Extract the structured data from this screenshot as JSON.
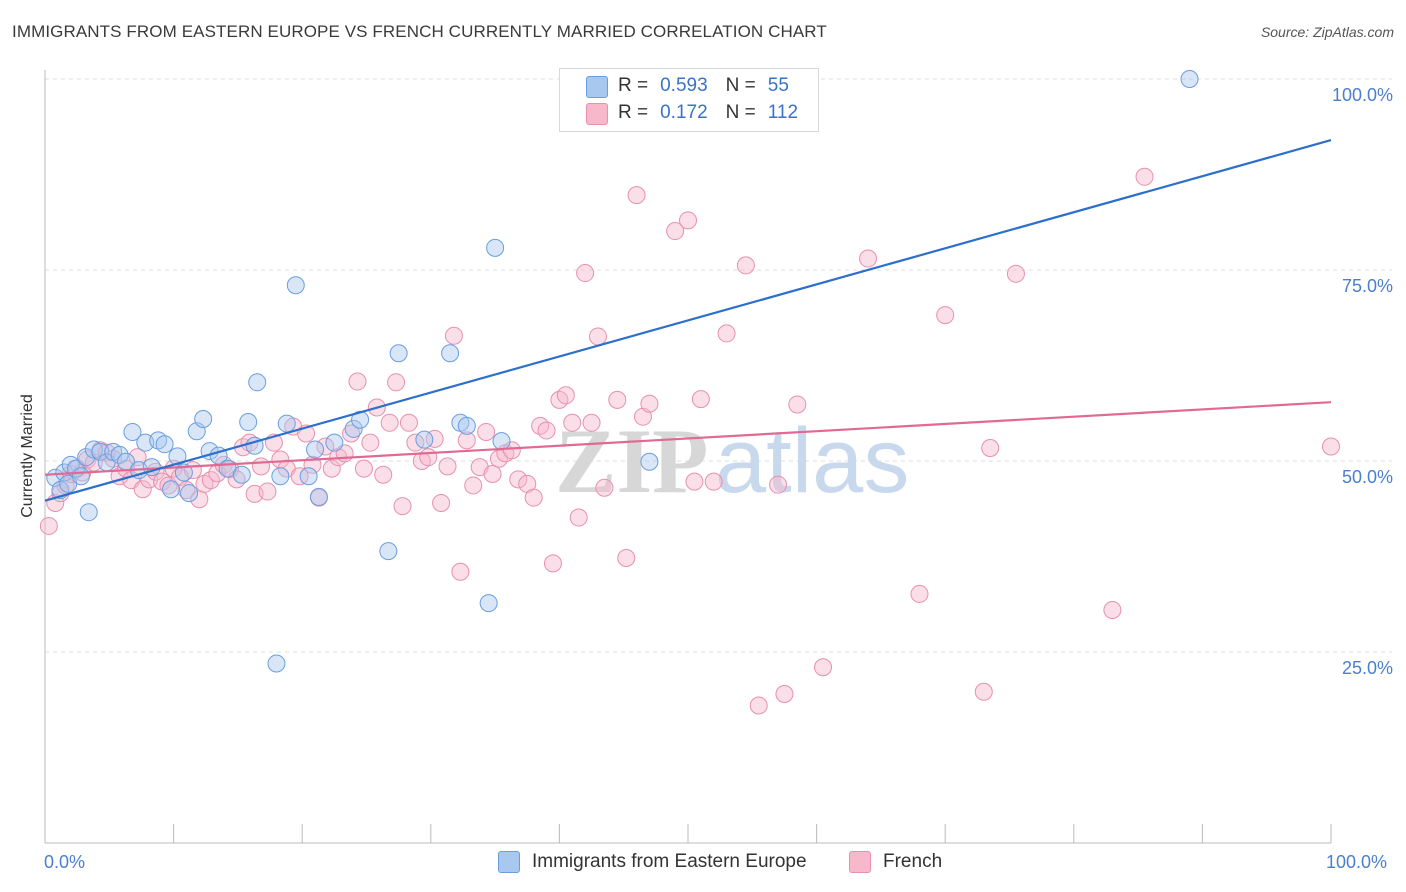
{
  "title": "IMMIGRANTS FROM EASTERN EUROPE VS FRENCH CURRENTLY MARRIED CORRELATION CHART",
  "source": "Source: ZipAtlas.com",
  "watermark": {
    "zip": "ZIP",
    "atlas": "atlas"
  },
  "legend_top": {
    "rows": [
      {
        "r_label": "R =",
        "r_value": "0.593",
        "n_label": "N =",
        "n_value": "55"
      },
      {
        "r_label": "R =",
        "r_value": "0.172",
        "n_label": "N =",
        "n_value": "112"
      }
    ]
  },
  "colors": {
    "blue_fill": "#a9c8f0",
    "blue_stroke": "#6a9ee0",
    "blue_line": "#2c6fcc",
    "pink_fill": "#f7b8cc",
    "pink_stroke": "#e890ae",
    "pink_line": "#e06a94",
    "axis_text": "#4a7fd0",
    "grid": "#dddddd"
  },
  "chart_data": {
    "type": "scatter",
    "title": "IMMIGRANTS FROM EASTERN EUROPE VS FRENCH CURRENTLY MARRIED CORRELATION CHART",
    "xlabel": "",
    "ylabel": "Currently Married",
    "xlim": [
      0,
      100
    ],
    "ylim": [
      0,
      105
    ],
    "x_tick_labels": [
      "0.0%",
      "100.0%"
    ],
    "y_ticks": [
      25,
      50,
      75,
      100
    ],
    "y_tick_labels": [
      "25.0%",
      "50.0%",
      "75.0%",
      "100.0%"
    ],
    "grid": true,
    "legend_position": "bottom",
    "series": [
      {
        "name": "Immigrants from Eastern Europe",
        "color": "#a9c8f0",
        "r": 0.593,
        "n": 55,
        "trend": {
          "x": [
            0,
            100
          ],
          "y": [
            44.8,
            92.0
          ]
        },
        "points": [
          [
            0.8,
            47.8
          ],
          [
            1.2,
            46.2
          ],
          [
            1.5,
            48.5
          ],
          [
            1.8,
            47.0
          ],
          [
            2.0,
            49.5
          ],
          [
            2.4,
            49.0
          ],
          [
            2.8,
            48.0
          ],
          [
            3.2,
            50.5
          ],
          [
            3.4,
            43.3
          ],
          [
            3.8,
            51.5
          ],
          [
            4.3,
            51.2
          ],
          [
            4.8,
            49.8
          ],
          [
            5.3,
            51.2
          ],
          [
            5.8,
            50.8
          ],
          [
            6.3,
            49.9
          ],
          [
            6.8,
            53.8
          ],
          [
            7.3,
            48.8
          ],
          [
            7.8,
            52.4
          ],
          [
            8.3,
            49.2
          ],
          [
            8.8,
            52.7
          ],
          [
            9.3,
            52.2
          ],
          [
            9.8,
            46.3
          ],
          [
            10.3,
            50.6
          ],
          [
            10.8,
            48.5
          ],
          [
            11.2,
            45.8
          ],
          [
            11.8,
            53.9
          ],
          [
            12.3,
            55.5
          ],
          [
            12.8,
            51.3
          ],
          [
            13.5,
            50.7
          ],
          [
            14.2,
            49.0
          ],
          [
            15.3,
            48.2
          ],
          [
            15.8,
            55.1
          ],
          [
            16.3,
            52.0
          ],
          [
            16.5,
            60.3
          ],
          [
            18.0,
            23.5
          ],
          [
            18.3,
            48.0
          ],
          [
            18.8,
            54.9
          ],
          [
            19.5,
            73.0
          ],
          [
            20.5,
            48.0
          ],
          [
            21.0,
            51.5
          ],
          [
            21.3,
            45.3
          ],
          [
            22.5,
            52.4
          ],
          [
            24.0,
            54.2
          ],
          [
            24.5,
            55.4
          ],
          [
            26.7,
            38.2
          ],
          [
            27.5,
            64.1
          ],
          [
            29.5,
            52.8
          ],
          [
            31.5,
            64.1
          ],
          [
            32.3,
            55.0
          ],
          [
            32.8,
            54.6
          ],
          [
            34.5,
            31.4
          ],
          [
            35.0,
            77.9
          ],
          [
            35.5,
            52.6
          ],
          [
            47.0,
            49.9
          ],
          [
            89.0,
            100.0
          ]
        ]
      },
      {
        "name": "French",
        "color": "#f7b8cc",
        "r": 0.172,
        "n": 112,
        "trend": {
          "x": [
            0,
            100
          ],
          "y": [
            48.2,
            57.7
          ]
        },
        "points": [
          [
            0.3,
            41.5
          ],
          [
            0.8,
            44.5
          ],
          [
            1.2,
            45.8
          ],
          [
            1.6,
            46.8
          ],
          [
            2.0,
            48.3
          ],
          [
            2.5,
            49.0
          ],
          [
            2.9,
            48.5
          ],
          [
            3.3,
            50.2
          ],
          [
            3.8,
            49.8
          ],
          [
            4.3,
            51.4
          ],
          [
            4.8,
            51.1
          ],
          [
            5.3,
            50.3
          ],
          [
            5.8,
            48.0
          ],
          [
            6.3,
            49.0
          ],
          [
            6.7,
            47.5
          ],
          [
            7.2,
            50.5
          ],
          [
            7.6,
            46.3
          ],
          [
            8.1,
            47.6
          ],
          [
            8.6,
            48.6
          ],
          [
            9.1,
            47.3
          ],
          [
            9.6,
            46.8
          ],
          [
            10.0,
            49.0
          ],
          [
            10.5,
            47.9
          ],
          [
            11.0,
            46.2
          ],
          [
            11.5,
            48.8
          ],
          [
            12.0,
            45.0
          ],
          [
            12.4,
            47.0
          ],
          [
            12.9,
            47.5
          ],
          [
            13.4,
            48.4
          ],
          [
            13.9,
            49.5
          ],
          [
            14.4,
            48.9
          ],
          [
            14.9,
            47.6
          ],
          [
            15.4,
            51.8
          ],
          [
            15.9,
            52.4
          ],
          [
            16.3,
            45.7
          ],
          [
            16.8,
            49.3
          ],
          [
            17.3,
            46.0
          ],
          [
            17.8,
            52.4
          ],
          [
            18.3,
            50.2
          ],
          [
            18.8,
            49.0
          ],
          [
            19.3,
            54.5
          ],
          [
            19.8,
            48.0
          ],
          [
            20.3,
            53.6
          ],
          [
            20.8,
            49.5
          ],
          [
            21.3,
            45.2
          ],
          [
            21.8,
            51.9
          ],
          [
            22.3,
            49.0
          ],
          [
            22.8,
            50.5
          ],
          [
            23.3,
            51.0
          ],
          [
            23.8,
            53.6
          ],
          [
            24.3,
            60.4
          ],
          [
            24.8,
            49.0
          ],
          [
            25.3,
            52.4
          ],
          [
            25.8,
            57.0
          ],
          [
            26.3,
            48.2
          ],
          [
            26.8,
            55.0
          ],
          [
            27.3,
            60.3
          ],
          [
            27.8,
            44.1
          ],
          [
            28.3,
            55.0
          ],
          [
            28.8,
            52.4
          ],
          [
            29.3,
            50.0
          ],
          [
            29.8,
            50.5
          ],
          [
            30.3,
            52.9
          ],
          [
            30.8,
            44.5
          ],
          [
            31.3,
            49.3
          ],
          [
            31.8,
            66.4
          ],
          [
            32.3,
            35.5
          ],
          [
            32.8,
            52.7
          ],
          [
            33.3,
            46.8
          ],
          [
            33.8,
            49.2
          ],
          [
            34.3,
            53.8
          ],
          [
            34.8,
            48.3
          ],
          [
            35.3,
            50.3
          ],
          [
            35.8,
            51.0
          ],
          [
            36.3,
            51.4
          ],
          [
            36.8,
            47.6
          ],
          [
            37.5,
            47.0
          ],
          [
            38.0,
            45.2
          ],
          [
            38.5,
            54.6
          ],
          [
            39.0,
            54.0
          ],
          [
            39.5,
            36.6
          ],
          [
            40.0,
            58.0
          ],
          [
            40.5,
            58.6
          ],
          [
            41.0,
            55.0
          ],
          [
            41.5,
            42.6
          ],
          [
            42.0,
            74.6
          ],
          [
            42.5,
            55.0
          ],
          [
            43.0,
            66.3
          ],
          [
            43.5,
            46.5
          ],
          [
            44.5,
            58.0
          ],
          [
            45.2,
            37.3
          ],
          [
            46.0,
            84.8
          ],
          [
            46.5,
            55.8
          ],
          [
            47.0,
            57.5
          ],
          [
            49.0,
            80.1
          ],
          [
            50.0,
            81.5
          ],
          [
            50.5,
            47.3
          ],
          [
            51.0,
            58.1
          ],
          [
            52.0,
            47.3
          ],
          [
            53.0,
            66.7
          ],
          [
            54.5,
            75.6
          ],
          [
            55.5,
            18.0
          ],
          [
            57.0,
            46.9
          ],
          [
            57.5,
            19.5
          ],
          [
            58.5,
            57.4
          ],
          [
            60.5,
            23.0
          ],
          [
            64.0,
            76.5
          ],
          [
            68.0,
            32.6
          ],
          [
            70.0,
            69.1
          ],
          [
            73.0,
            19.8
          ],
          [
            73.5,
            51.7
          ],
          [
            75.5,
            74.5
          ],
          [
            83.0,
            30.5
          ],
          [
            85.5,
            87.2
          ],
          [
            100.0,
            51.9
          ]
        ]
      }
    ]
  }
}
